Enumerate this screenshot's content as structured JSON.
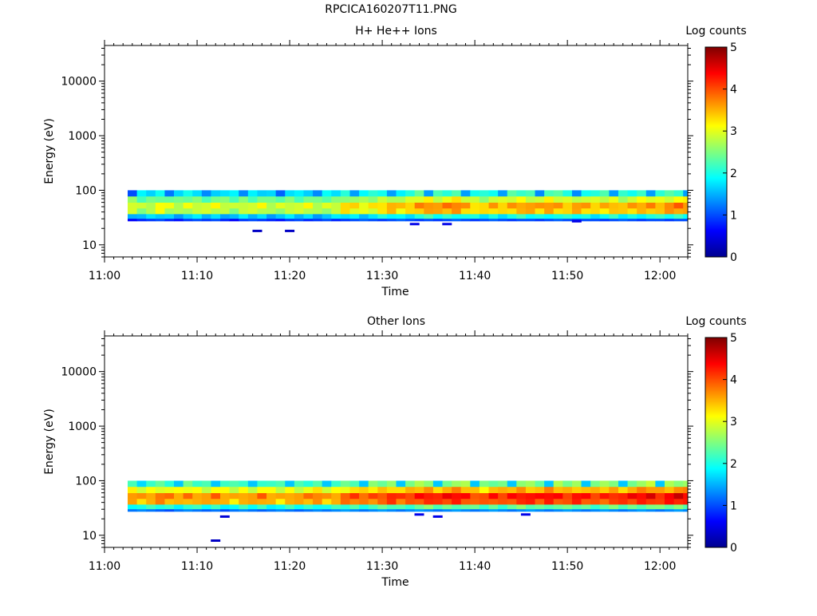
{
  "figure": {
    "title": "RPCICA160207T11.PNG"
  },
  "colorscale": {
    "name": "jet",
    "stops": [
      "#00008f",
      "#0000ff",
      "#007fff",
      "#00ffff",
      "#7fff7f",
      "#ffff00",
      "#ff7f00",
      "#ff0000",
      "#7f0000"
    ]
  },
  "chart_data": [
    {
      "type": "heatmap",
      "title": "H+ He++ Ions",
      "xlabel": "Time",
      "ylabel": "Energy (eV)",
      "y_scale": "log",
      "ylim": [
        6,
        45000
      ],
      "y_ticks": [
        10,
        100,
        1000,
        10000
      ],
      "y_tick_labels": [
        "10",
        "100",
        "1000",
        "10000"
      ],
      "x_start": "11:00",
      "x_end": "12:03",
      "x_ticks": [
        "11:00",
        "11:10",
        "11:20",
        "11:30",
        "11:40",
        "11:50",
        "12:00"
      ],
      "data_start": "11:02.5",
      "bin_minutes": 1,
      "energy_bins_eV": [
        30,
        37,
        47,
        60,
        78,
        100
      ],
      "colorbar": {
        "label": "Log counts",
        "range": [
          0,
          5
        ],
        "ticks": [
          "0",
          "1",
          "2",
          "3",
          "4",
          "5"
        ]
      },
      "low_energy_band_log": [
        0.6,
        0.8,
        0.9,
        1.0,
        0.8,
        0.7,
        0.9,
        1.0,
        0.9,
        1.0,
        0.8,
        0.6,
        0.9,
        1.0,
        0.9,
        0.8,
        0.7,
        0.9,
        1.0,
        0.8,
        0.9,
        1.0,
        0.8,
        0.9,
        1.0,
        1.1,
        1.0,
        0.9,
        1.0,
        1.1,
        1.0,
        0.9,
        1.0,
        0.9,
        1.0,
        1.1,
        1.0,
        0.9,
        1.0,
        1.1,
        1.0,
        0.9,
        1.0,
        1.0,
        0.9,
        1.0,
        1.1,
        1.0,
        0.9,
        1.0,
        1.0,
        0.9,
        1.0,
        1.1,
        1.0,
        0.9,
        1.0,
        1.0,
        0.9,
        1.0,
        1.0
      ],
      "peak_log": [
        3.0,
        2.8,
        2.9,
        3.1,
        2.9,
        2.8,
        3.0,
        3.0,
        2.9,
        3.0,
        2.9,
        2.8,
        3.0,
        2.9,
        3.0,
        2.8,
        2.9,
        3.0,
        2.9,
        3.0,
        2.8,
        2.9,
        3.0,
        3.3,
        3.2,
        3.1,
        3.2,
        3.4,
        3.5,
        3.3,
        3.4,
        3.7,
        3.8,
        3.6,
        3.7,
        3.8,
        3.6,
        3.4,
        3.3,
        3.5,
        3.4,
        3.6,
        3.7,
        3.6,
        3.5,
        3.7,
        3.6,
        3.5,
        3.6,
        3.5,
        3.4,
        3.5,
        3.6,
        3.4,
        3.5,
        3.6,
        3.7,
        3.6,
        3.7,
        3.8,
        3.7
      ],
      "sparse_points": [
        {
          "time": "11:16.5",
          "energy_eV": 18,
          "log_counts": 0.3
        },
        {
          "time": "11:20",
          "energy_eV": 18,
          "log_counts": 0.3
        },
        {
          "time": "11:33.5",
          "energy_eV": 24,
          "log_counts": 0.5
        },
        {
          "time": "11:37",
          "energy_eV": 24,
          "log_counts": 0.5
        },
        {
          "time": "11:51",
          "energy_eV": 27,
          "log_counts": 0.5
        }
      ]
    },
    {
      "type": "heatmap",
      "title": "Other Ions",
      "xlabel": "Time",
      "ylabel": "Energy (eV)",
      "y_scale": "log",
      "ylim": [
        6,
        45000
      ],
      "y_ticks": [
        10,
        100,
        1000,
        10000
      ],
      "y_tick_labels": [
        "10",
        "100",
        "1000",
        "10000"
      ],
      "x_start": "11:00",
      "x_end": "12:03",
      "x_ticks": [
        "11:00",
        "11:10",
        "11:20",
        "11:30",
        "11:40",
        "11:50",
        "12:00"
      ],
      "data_start": "11:02.5",
      "bin_minutes": 1,
      "energy_bins_eV": [
        30,
        37,
        47,
        60,
        78,
        100
      ],
      "colorbar": {
        "label": "Log counts",
        "range": [
          0,
          5
        ],
        "ticks": [
          "0",
          "1",
          "2",
          "3",
          "4",
          "5"
        ]
      },
      "low_energy_band_log": [
        1.2,
        1.3,
        1.2,
        1.1,
        1.0,
        1.2,
        1.3,
        1.2,
        1.1,
        1.2,
        1.0,
        1.2,
        1.3,
        1.2,
        1.1,
        1.2,
        1.3,
        1.2,
        1.1,
        1.2,
        1.3,
        1.2,
        1.3,
        1.4,
        1.3,
        1.2,
        1.3,
        1.4,
        1.3,
        1.2,
        1.3,
        1.4,
        1.3,
        1.2,
        1.3,
        1.4,
        1.3,
        1.2,
        1.3,
        1.4,
        1.3,
        1.2,
        1.3,
        1.4,
        1.3,
        1.2,
        1.3,
        1.4,
        1.3,
        1.2,
        1.3,
        1.4,
        1.3,
        1.2,
        1.3,
        1.4,
        1.3,
        1.2,
        1.3,
        1.4,
        1.3
      ],
      "peak_log": [
        3.7,
        3.6,
        3.7,
        3.8,
        3.7,
        3.6,
        3.8,
        3.7,
        3.6,
        3.8,
        3.6,
        3.5,
        3.7,
        3.6,
        3.8,
        3.6,
        3.5,
        3.7,
        3.6,
        3.7,
        3.8,
        3.6,
        3.7,
        3.9,
        4.0,
        3.9,
        4.0,
        4.1,
        4.2,
        4.0,
        4.1,
        4.3,
        4.4,
        4.2,
        4.3,
        4.4,
        4.3,
        4.1,
        4.0,
        4.2,
        4.1,
        4.3,
        4.4,
        4.3,
        4.2,
        4.4,
        4.3,
        4.2,
        4.3,
        4.2,
        4.1,
        4.2,
        4.3,
        4.2,
        4.3,
        4.4,
        4.5,
        4.3,
        4.4,
        4.5,
        4.4
      ],
      "sparse_points": [
        {
          "time": "11:12",
          "energy_eV": 8,
          "log_counts": 0.3
        },
        {
          "time": "11:13",
          "energy_eV": 22,
          "log_counts": 0.4
        },
        {
          "time": "11:34",
          "energy_eV": 24,
          "log_counts": 0.5
        },
        {
          "time": "11:36",
          "energy_eV": 22,
          "log_counts": 0.5
        },
        {
          "time": "11:45.5",
          "energy_eV": 24,
          "log_counts": 0.5
        }
      ]
    }
  ]
}
